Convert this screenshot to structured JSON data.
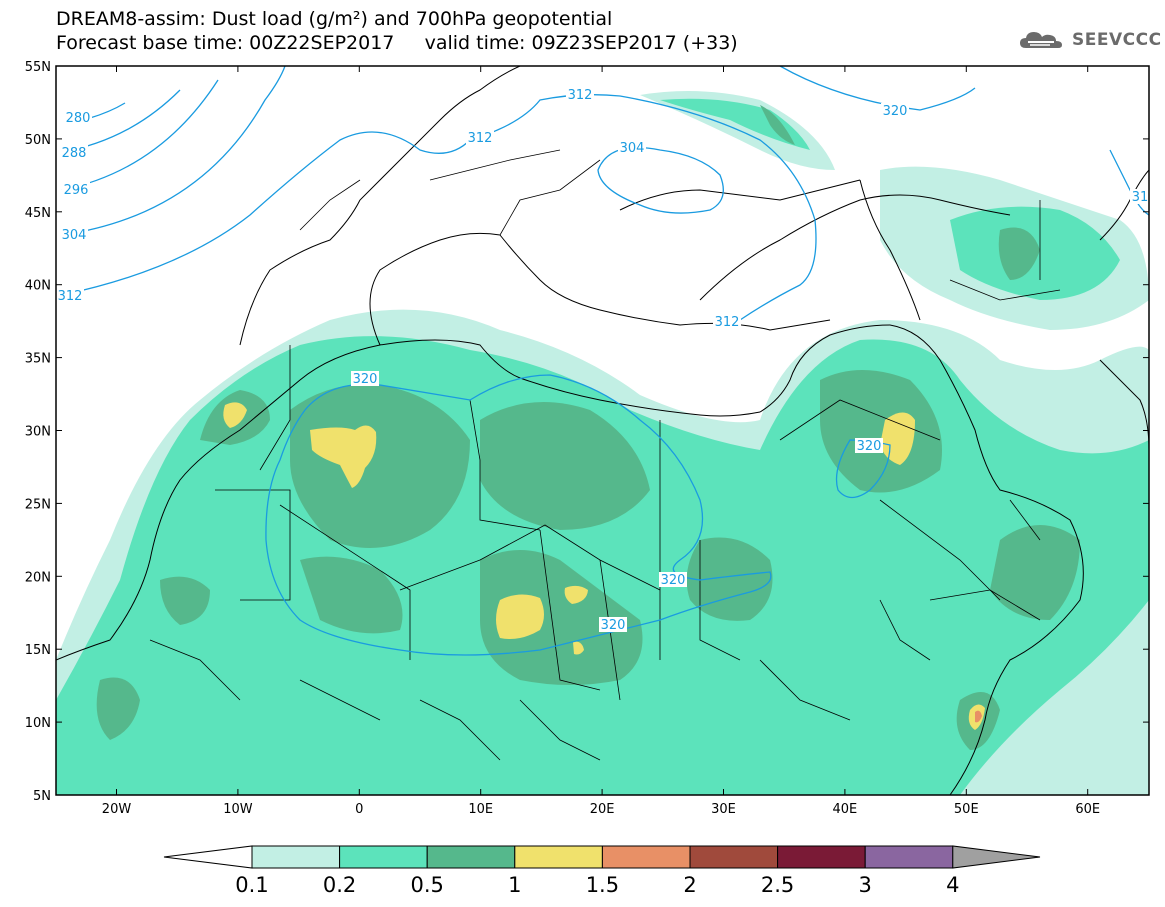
{
  "header": {
    "title_line1": "DREAM8-assim: Dust load (g/m²) and 700hPa geopotential",
    "title_line2": "Forecast base time: 00Z22SEP2017     valid time: 09Z23SEP2017 (+33)",
    "logo_text": "SEEVCCC",
    "logo_icon": "cloud-icon"
  },
  "map": {
    "lat_labels": [
      "55N",
      "50N",
      "45N",
      "40N",
      "35N",
      "30N",
      "25N",
      "20N",
      "15N",
      "10N",
      "5N"
    ],
    "lon_labels": [
      "20W",
      "10W",
      "0",
      "10E",
      "20E",
      "30E",
      "40E",
      "50E",
      "60E"
    ],
    "contour_labels": [
      "280",
      "288",
      "296",
      "304",
      "312",
      "312",
      "312",
      "304",
      "320",
      "31",
      "312",
      "320",
      "320",
      "320",
      "320"
    ],
    "colors": {
      "ocean": "#ffffff",
      "coast": "#000000",
      "geopotential": "#1a9be0"
    }
  },
  "colorbar": {
    "tick_labels": [
      "0.1",
      "0.2",
      "0.5",
      "1",
      "1.5",
      "2",
      "2.5",
      "3",
      "4"
    ],
    "colors": [
      "#c2efe4",
      "#5ce3bb",
      "#55b88c",
      "#f0e16c",
      "#e89066",
      "#a04a3c",
      "#7a1a36",
      "#8a66a0"
    ],
    "under_color": "#ffffff",
    "over_color": "#a0a0a0"
  }
}
